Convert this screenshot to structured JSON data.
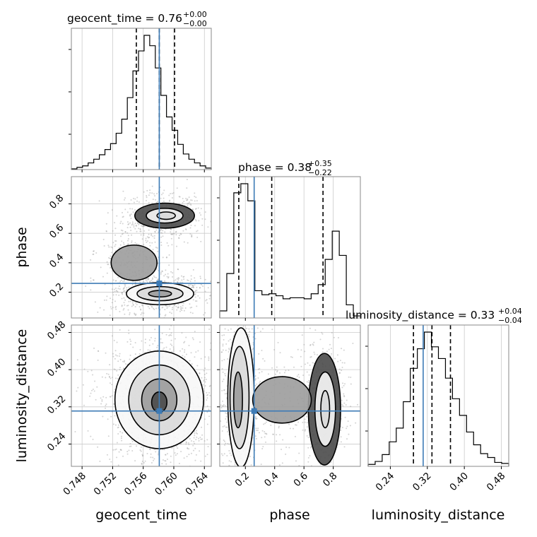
{
  "chart_data": {
    "type": "corner",
    "parameters": [
      "geocent_time",
      "phase",
      "luminosity_distance"
    ],
    "truth": {
      "geocent_time": 0.7581,
      "phase": 0.26,
      "luminosity_distance": 0.311
    },
    "colors": {
      "truth": "#3d7bb6",
      "hist": "#000000",
      "grid": "#cccccc",
      "frame": "#888888",
      "scatter": "#9e9e9e"
    },
    "grid": true,
    "axes": {
      "geocent_time": {
        "range": [
          0.7466,
          0.7649
        ],
        "ticks": [
          0.748,
          0.752,
          0.756,
          0.76,
          0.764
        ],
        "tick_labels": [
          "0.748",
          "0.752",
          "0.756",
          "0.760",
          "0.764"
        ]
      },
      "phase": {
        "range": [
          0.025,
          0.985
        ],
        "ticks": [
          0.2,
          0.4,
          0.6,
          0.8
        ],
        "tick_labels": [
          "0.2",
          "0.4",
          "0.6",
          "0.8"
        ]
      },
      "luminosity_distance": {
        "range": [
          0.192,
          0.496
        ],
        "ticks": [
          0.24,
          0.32,
          0.4,
          0.48
        ],
        "tick_labels": [
          "0.24",
          "0.32",
          "0.40",
          "0.48"
        ]
      }
    },
    "axis_labels": {
      "geocent_time": "geocent_time",
      "phase": "phase",
      "luminosity_distance": "luminosity_distance"
    },
    "titles": [
      {
        "param": "geocent_time",
        "main": "geocent_time = 0.76",
        "upper": "+0.00",
        "lower": "−0.00"
      },
      {
        "param": "phase",
        "main": "phase = 0.38",
        "upper": "+0.35",
        "lower": "−0.22"
      },
      {
        "param": "luminosity_distance",
        "main": "luminosity_distance = 0.33",
        "upper": "+0.04",
        "lower": "−0.04"
      }
    ],
    "histograms": {
      "geocent_time": {
        "edges_range": [
          0.7466,
          0.7649
        ],
        "counts": [
          1,
          3,
          5,
          9,
          14,
          20,
          27,
          35,
          49,
          68,
          97,
          133,
          160,
          181,
          167,
          137,
          100,
          71,
          53,
          34,
          21,
          14,
          9,
          5,
          2
        ],
        "quantiles": [
          0.7551,
          0.7581,
          0.7601
        ]
      },
      "phase": {
        "edges_range": [
          0.025,
          0.985
        ],
        "counts": [
          7,
          44,
          124,
          133,
          116,
          27,
          23,
          24,
          22,
          19,
          20,
          20,
          19,
          24,
          33,
          58,
          86,
          62,
          13,
          2
        ],
        "quantiles": [
          0.155,
          0.38,
          0.73
        ]
      },
      "luminosity_distance": {
        "edges_range": [
          0.192,
          0.496
        ],
        "counts": [
          2,
          5,
          12,
          25,
          39,
          66,
          100,
          120,
          137,
          122,
          110,
          90,
          69,
          52,
          35,
          22,
          13,
          9,
          4,
          3
        ],
        "quantiles": [
          0.29,
          0.33,
          0.37
        ]
      }
    }
  }
}
